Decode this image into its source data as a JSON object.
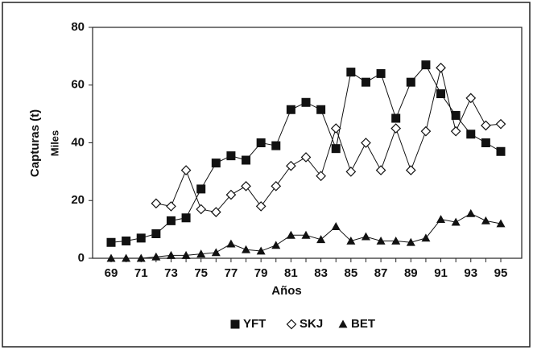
{
  "chart_data": {
    "type": "line",
    "ylabel": "Capturas (t)",
    "ylabel2": "Miles",
    "xlabel": "Años",
    "categories": [
      "69",
      null,
      "71",
      null,
      "73",
      null,
      "75",
      null,
      "77",
      null,
      "79",
      null,
      "81",
      null,
      "83",
      null,
      "85",
      null,
      "87",
      null,
      "89",
      null,
      "91",
      null,
      "93",
      null,
      "95"
    ],
    "series": [
      {
        "name": "YFT",
        "color": "#111111",
        "marker": "square",
        "values": [
          5.5,
          6,
          7,
          8.5,
          13,
          14,
          24,
          33,
          35.5,
          34,
          40,
          39,
          51.5,
          54,
          51.5,
          38,
          64.5,
          61,
          64,
          48.5,
          61,
          67,
          57,
          49.5,
          43,
          40,
          37
        ]
      },
      {
        "name": "SKJ",
        "color": "#111111",
        "marker": "diamond",
        "values": [
          null,
          null,
          null,
          19,
          18,
          30.5,
          17,
          16,
          22,
          25,
          18,
          25,
          32,
          35,
          28.5,
          45,
          30,
          40,
          30.5,
          45,
          30.5,
          44,
          66,
          44,
          55.5,
          46,
          46.5
        ]
      },
      {
        "name": "BET",
        "color": "#111111",
        "marker": "triangle",
        "values": [
          0,
          0,
          0,
          0.5,
          1,
          1,
          1.5,
          2,
          5,
          3,
          2.5,
          4.5,
          8,
          8,
          6.5,
          11,
          6,
          7.5,
          6,
          6,
          5.5,
          7,
          13.5,
          12.5,
          15.5,
          13,
          12
        ]
      }
    ],
    "ylim": [
      0,
      80
    ],
    "yticks": [
      0,
      20,
      40,
      60,
      80
    ],
    "legend": "bottom"
  }
}
